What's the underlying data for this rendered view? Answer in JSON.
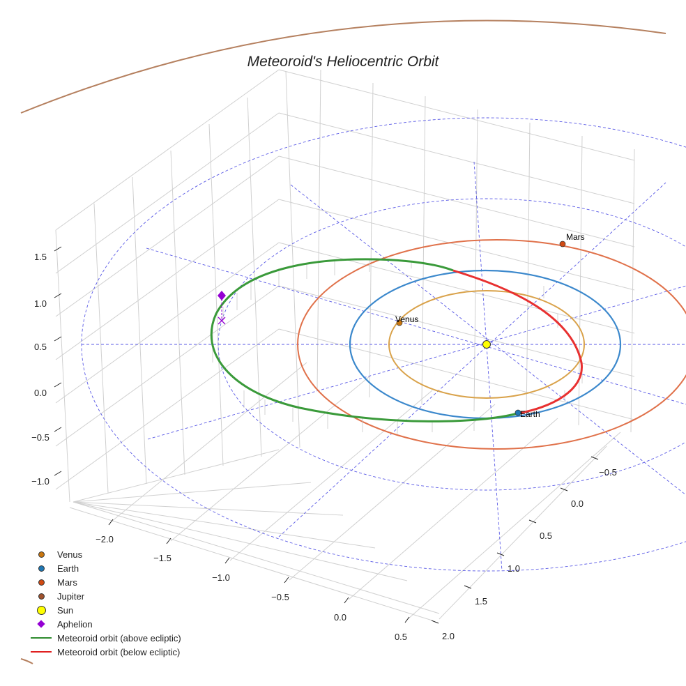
{
  "chart_data": {
    "type": "line",
    "projection": "3d",
    "title": "Meteoroid's Heliocentric Orbit",
    "x_ticks": [
      "−2.0",
      "−1.5",
      "−1.0",
      "−0.5",
      "0.0",
      "0.5"
    ],
    "y_ticks": [
      "2.0",
      "1.5",
      "1.0",
      "0.5",
      "0.0",
      "−0.5"
    ],
    "z_ticks": [
      "1.5",
      "1.0",
      "0.5",
      "0.0",
      "−0.5",
      "−1.0"
    ],
    "xlim": [
      -2.3,
      0.7
    ],
    "ylim": [
      -0.7,
      2.1
    ],
    "zlim": [
      -1.2,
      1.7
    ],
    "grid": true,
    "legend_position": "lower-left",
    "planet_labels": {
      "venus": "Venus",
      "earth": "Earth",
      "mars": "Mars"
    },
    "orbits_au": {
      "venus": 0.72,
      "earth": 1.0,
      "mars": 1.52,
      "jupiter": 5.2
    },
    "legend": [
      {
        "label": "Venus",
        "color": "#c9760f",
        "marker": "circle"
      },
      {
        "label": "Earth",
        "color": "#1f77b4",
        "marker": "circle"
      },
      {
        "label": "Mars",
        "color": "#d14a12",
        "marker": "circle"
      },
      {
        "label": "Jupiter",
        "color": "#a0522d",
        "marker": "circle"
      },
      {
        "label": "Sun",
        "color": "#ffff00",
        "marker": "big-circle"
      },
      {
        "label": "Aphelion",
        "color": "#9400d3",
        "marker": "diamond"
      },
      {
        "label": "Meteoroid orbit (above ecliptic)",
        "color": "#2e8b2e",
        "marker": "line"
      },
      {
        "label": "Meteoroid orbit (below ecliptic)",
        "color": "#e02020",
        "marker": "line"
      }
    ]
  }
}
